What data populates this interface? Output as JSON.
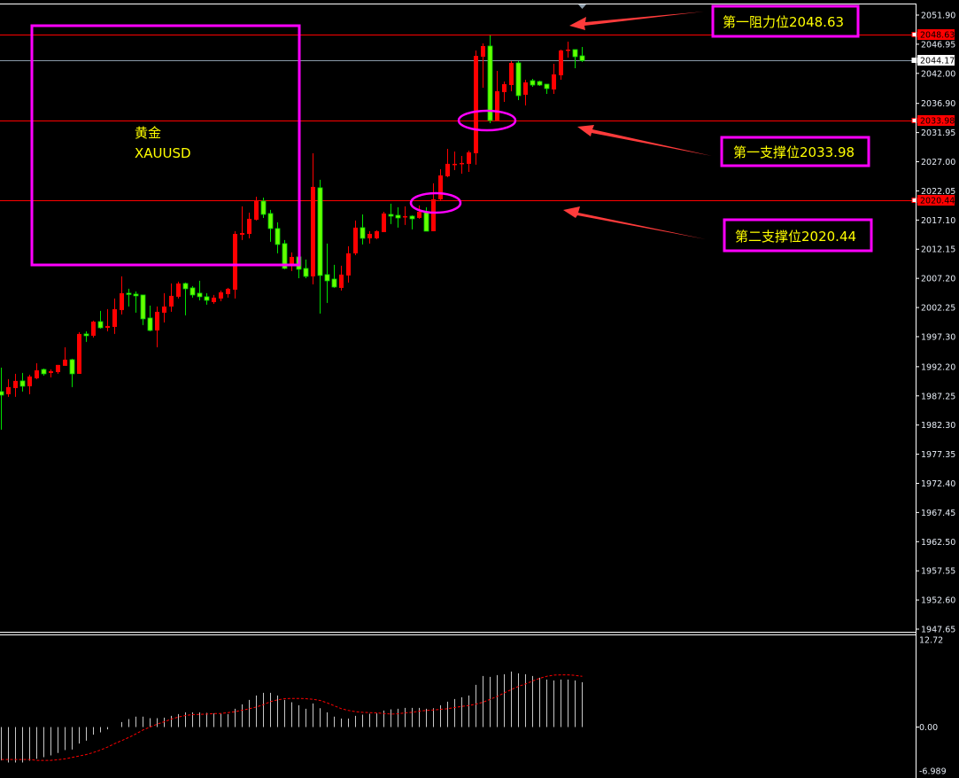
{
  "colors": {
    "background": "#000000",
    "bull_candle": "#ff0000",
    "bear_candle": "#66ff00",
    "level_line": "#ff0000",
    "bid_line": "#8a9aa8",
    "annotation_box": "#ff00ff",
    "annotation_text": "#ffff00",
    "arrow": "#ff3b3b",
    "macd_histogram": "#c8c8c8",
    "signal_line": "#ff0000"
  },
  "symbol_box": {
    "name_cn": "黄金",
    "ticker": "XAUUSD"
  },
  "annotations": [
    {
      "label": "第一阻力位2048.63",
      "price": 2048.63,
      "kind": "resistance"
    },
    {
      "label": "第一支撑位2033.98",
      "price": 2033.98,
      "kind": "support"
    },
    {
      "label": "第二支撑位2020.44",
      "price": 2020.44,
      "kind": "support"
    }
  ],
  "price_tags": [
    {
      "text": "2048.63",
      "price": 2048.63,
      "style": "red"
    },
    {
      "text": "2044.17",
      "price": 2044.17,
      "style": "white"
    },
    {
      "text": "2033.98",
      "price": 2033.98,
      "style": "red"
    },
    {
      "text": "2020.44",
      "price": 2020.44,
      "style": "red"
    }
  ],
  "chart_data": [
    {
      "type": "candlestick",
      "title": "",
      "ylim": [
        1947.65,
        2051.9
      ],
      "y_ticks": [
        "2051.90",
        "2046.95",
        "2042.00",
        "2036.90",
        "2031.95",
        "2027.00",
        "2022.05",
        "2017.10",
        "2012.15",
        "2007.20",
        "2002.25",
        "1997.30",
        "1992.20",
        "1987.25",
        "1982.30",
        "1977.35",
        "1972.40",
        "1967.45",
        "1962.50",
        "1957.55",
        "1952.60",
        "1947.65"
      ],
      "grid": false,
      "ohlc": [
        [
          1987.98,
          1992.04,
          1981.52,
          1987.38
        ],
        [
          1987.53,
          1990.09,
          1987.08,
          1988.74
        ],
        [
          1988.58,
          1990.99,
          1987.08,
          1989.79
        ],
        [
          1989.79,
          1991.14,
          1987.98,
          1988.89
        ],
        [
          1988.89,
          1990.84,
          1987.53,
          1990.54
        ],
        [
          1990.24,
          1992.8,
          1990.09,
          1991.59
        ],
        [
          1991.74,
          1991.89,
          1990.69,
          1990.99
        ],
        [
          1991.14,
          1991.74,
          1990.39,
          1991.44
        ],
        [
          1991.29,
          1992.5,
          1990.99,
          1992.5
        ],
        [
          1992.35,
          1995.5,
          1992.35,
          1993.4
        ],
        [
          1993.4,
          1993.55,
          1988.74,
          1990.99
        ],
        [
          1990.99,
          1998.06,
          1990.99,
          1997.76
        ],
        [
          1997.76,
          1998.21,
          1996.41,
          1997.46
        ],
        [
          1997.46,
          2000.02,
          1997.16,
          1999.86
        ],
        [
          1999.86,
          2001.67,
          1998.66,
          1998.81
        ],
        [
          1998.81,
          2001.97,
          1998.21,
          1999.11
        ],
        [
          1998.96,
          2003.78,
          1997.76,
          2001.97
        ],
        [
          2001.82,
          2007.54,
          2001.07,
          2004.68
        ],
        [
          2004.68,
          2005.43,
          2002.42,
          2004.53
        ],
        [
          2004.53,
          2004.98,
          2001.37,
          2004.23
        ],
        [
          2004.38,
          2004.38,
          1999.26,
          2000.32
        ],
        [
          2000.47,
          2002.57,
          1998.21,
          1998.36
        ],
        [
          1998.36,
          2002.42,
          1995.5,
          2001.52
        ],
        [
          2001.37,
          2004.68,
          1999.71,
          2002.42
        ],
        [
          2002.42,
          2006.33,
          2001.52,
          2004.23
        ],
        [
          2004.08,
          2006.63,
          2003.78,
          2006.33
        ],
        [
          2006.33,
          2006.48,
          2000.92,
          2005.43
        ],
        [
          2005.58,
          2005.88,
          2003.93,
          2004.38
        ],
        [
          2004.68,
          2006.78,
          2003.47,
          2004.08
        ],
        [
          2004.08,
          2004.68,
          2002.72,
          2003.47
        ],
        [
          2003.17,
          2004.38,
          2002.87,
          2003.93
        ],
        [
          2003.78,
          2005.13,
          2003.32,
          2004.83
        ],
        [
          2004.53,
          2005.58,
          2003.93,
          2005.43
        ],
        [
          2005.28,
          2015.21,
          2003.78,
          2014.75
        ],
        [
          2014.6,
          2019.42,
          2013.7,
          2014.9
        ],
        [
          2014.75,
          2018.36,
          2014.0,
          2017.31
        ],
        [
          2017.16,
          2021.07,
          2017.01,
          2020.32
        ],
        [
          2020.32,
          2020.92,
          2017.46,
          2018.06
        ],
        [
          2018.21,
          2018.82,
          2013.4,
          2015.66
        ],
        [
          2015.66,
          2016.71,
          2011.45,
          2012.95
        ],
        [
          2013.1,
          2013.7,
          2008.74,
          2008.89
        ],
        [
          2009.49,
          2011.6,
          2008.44,
          2010.84
        ],
        [
          2010.84,
          2010.84,
          2007.23,
          2008.74
        ],
        [
          2008.89,
          2010.39,
          2007.23,
          2007.54
        ],
        [
          2007.54,
          2028.44,
          2006.18,
          2022.73
        ],
        [
          2022.58,
          2023.93,
          2001.22,
          2007.69
        ],
        [
          2007.84,
          2013.1,
          2003.02,
          2006.78
        ],
        [
          2007.08,
          2009.49,
          2005.58,
          2005.73
        ],
        [
          2005.58,
          2009.34,
          2005.13,
          2007.84
        ],
        [
          2007.69,
          2012.65,
          2006.48,
          2011.45
        ],
        [
          2011.45,
          2017.01,
          2011.14,
          2015.81
        ],
        [
          2015.81,
          2018.06,
          2012.95,
          2014.0
        ],
        [
          2014.0,
          2015.21,
          2013.1,
          2014.75
        ],
        [
          2014.0,
          2015.36,
          2013.85,
          2015.21
        ],
        [
          2015.06,
          2018.51,
          2015.06,
          2018.21
        ],
        [
          2018.06,
          2019.87,
          2016.41,
          2017.76
        ],
        [
          2017.91,
          2019.27,
          2015.81,
          2017.46
        ],
        [
          2017.61,
          2019.42,
          2016.26,
          2017.76
        ],
        [
          2017.76,
          2017.91,
          2015.51,
          2017.31
        ],
        [
          2017.46,
          2019.57,
          2017.31,
          2018.51
        ],
        [
          2018.36,
          2019.27,
          2015.21,
          2015.21
        ],
        [
          2015.21,
          2023.33,
          2015.21,
          2020.62
        ],
        [
          2020.62,
          2025.73,
          2020.47,
          2024.68
        ],
        [
          2024.53,
          2029.19,
          2024.38,
          2026.64
        ],
        [
          2026.49,
          2028.74,
          2025.58,
          2026.64
        ],
        [
          2026.64,
          2027.99,
          2024.98,
          2026.79
        ],
        [
          2026.64,
          2028.89,
          2025.28,
          2028.59
        ],
        [
          2028.44,
          2045.89,
          2026.49,
          2044.98
        ],
        [
          2044.83,
          2047.09,
          2039.57,
          2046.64
        ],
        [
          2046.64,
          2048.44,
          2033.55,
          2034.01
        ],
        [
          2034.01,
          2042.43,
          2033.86,
          2038.97
        ],
        [
          2038.82,
          2040.62,
          2037.16,
          2040.17
        ],
        [
          2040.02,
          2044.08,
          2038.97,
          2043.78
        ],
        [
          2043.78,
          2044.08,
          2037.46,
          2038.22
        ],
        [
          2038.37,
          2040.92,
          2036.56,
          2040.47
        ],
        [
          2040.77,
          2041.07,
          2039.72,
          2040.02
        ],
        [
          2040.62,
          2040.77,
          2039.87,
          2040.02
        ],
        [
          2040.17,
          2040.17,
          2038.52,
          2039.42
        ],
        [
          2039.27,
          2043.63,
          2038.52,
          2041.83
        ],
        [
          2041.68,
          2046.04,
          2040.92,
          2045.89
        ],
        [
          2045.89,
          2047.39,
          2044.68,
          2046.04
        ],
        [
          2046.04,
          2046.04,
          2042.88,
          2044.83
        ],
        [
          2044.98,
          2046.49,
          2043.93,
          2044.17
        ]
      ]
    },
    {
      "type": "bar+line",
      "title": "",
      "ylim": [
        -6.989,
        12.72
      ],
      "y_ticks": [
        "12.72",
        "0.00",
        "-6.989"
      ],
      "histogram": [
        -4.86,
        -5.16,
        -5.16,
        -5.16,
        -4.9,
        -4.64,
        -4.39,
        -4.13,
        -3.78,
        -3.35,
        -3.27,
        -2.41,
        -1.98,
        -1.12,
        -0.77,
        -0.34,
        0.0,
        0.73,
        1.16,
        1.51,
        1.51,
        1.29,
        1.29,
        1.38,
        1.63,
        1.89,
        2.15,
        2.15,
        2.15,
        2.06,
        1.98,
        1.98,
        1.89,
        2.67,
        3.31,
        3.96,
        4.6,
        4.99,
        4.99,
        4.6,
        3.96,
        3.61,
        3.18,
        2.67,
        3.44,
        2.75,
        2.15,
        1.51,
        1.25,
        1.25,
        1.63,
        1.81,
        1.94,
        1.98,
        2.41,
        2.58,
        2.67,
        2.8,
        2.8,
        2.8,
        2.67,
        2.75,
        3.18,
        3.7,
        4.09,
        4.34,
        4.6,
        6.15,
        7.44,
        7.31,
        7.57,
        7.7,
        8.08,
        7.83,
        7.7,
        7.44,
        7.18,
        6.92,
        6.79,
        6.92,
        6.92,
        6.79,
        6.54
      ],
      "signal": [
        -4.73,
        -4.73,
        -4.73,
        -4.73,
        -4.73,
        -4.86,
        -4.86,
        -4.86,
        -4.77,
        -4.64,
        -4.43,
        -4.21,
        -4.0,
        -3.7,
        -3.35,
        -2.92,
        -2.41,
        -1.98,
        -1.51,
        -0.99,
        -0.43,
        0.0,
        0.43,
        0.77,
        1.16,
        1.46,
        1.68,
        1.81,
        1.85,
        1.89,
        1.98,
        1.98,
        2.1,
        2.24,
        2.45,
        2.67,
        2.92,
        3.27,
        3.7,
        3.96,
        4.13,
        4.17,
        4.17,
        4.13,
        4.04,
        3.87,
        3.53,
        3.1,
        2.67,
        2.41,
        2.24,
        2.15,
        2.1,
        2.06,
        1.98,
        1.89,
        1.94,
        2.06,
        2.15,
        2.32,
        2.41,
        2.49,
        2.58,
        2.67,
        2.84,
        3.01,
        3.14,
        3.35,
        3.61,
        4.04,
        4.47,
        4.99,
        5.46,
        5.93,
        6.28,
        6.71,
        7.1,
        7.4,
        7.57,
        7.61,
        7.61,
        7.53,
        7.4
      ]
    }
  ]
}
